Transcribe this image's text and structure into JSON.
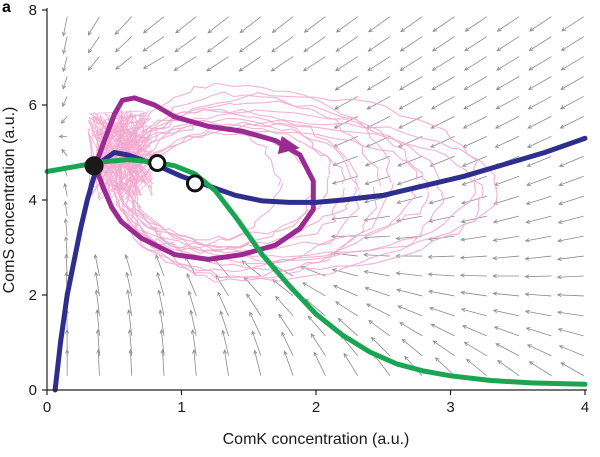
{
  "panel_label": "a",
  "colors": {
    "vector_field": "#8a8a8a",
    "stochastic_traces": "#f2a9cf",
    "deterministic_trajectory": "#9b2b93",
    "comk_nullcline": "#2e2e8f",
    "coms_nullcline": "#1aa552",
    "stable_point": "#1a1a1a",
    "unstable_point": "#ffffff"
  },
  "chart_data": {
    "type": "line",
    "title": "",
    "xlabel": "ComK concentration (a.u.)",
    "ylabel": "ComS concentration (a.u.)",
    "xlim": [
      0,
      4
    ],
    "ylim": [
      0,
      8
    ],
    "x_ticks": [
      0,
      1,
      2,
      3,
      4
    ],
    "y_ticks": [
      0,
      2,
      4,
      6,
      8
    ],
    "x_tick_labels": [
      "0",
      "1",
      "2",
      "3",
      "4"
    ],
    "y_tick_labels": [
      "0",
      "2",
      "4",
      "6",
      "8"
    ],
    "grid": false,
    "legend": "none",
    "series": [
      {
        "kind": "nullcline",
        "color": "#2e2e8f",
        "points": [
          [
            0.06,
            0.0
          ],
          [
            0.1,
            1.0
          ],
          [
            0.15,
            2.0
          ],
          [
            0.2,
            2.7
          ],
          [
            0.25,
            3.4
          ],
          [
            0.3,
            4.0
          ],
          [
            0.35,
            4.5
          ],
          [
            0.4,
            4.8
          ],
          [
            0.5,
            5.0
          ],
          [
            0.6,
            4.95
          ],
          [
            0.8,
            4.75
          ],
          [
            1.0,
            4.5
          ],
          [
            1.2,
            4.3
          ],
          [
            1.4,
            4.1
          ],
          [
            1.6,
            3.98
          ],
          [
            1.8,
            3.95
          ],
          [
            2.0,
            3.95
          ],
          [
            2.2,
            4.0
          ],
          [
            2.5,
            4.1
          ],
          [
            2.8,
            4.3
          ],
          [
            3.1,
            4.5
          ],
          [
            3.4,
            4.75
          ],
          [
            3.7,
            5.0
          ],
          [
            4.0,
            5.3
          ]
        ]
      },
      {
        "kind": "nullcline",
        "color": "#1aa552",
        "points": [
          [
            0.0,
            4.6
          ],
          [
            0.2,
            4.7
          ],
          [
            0.4,
            4.8
          ],
          [
            0.6,
            4.85
          ],
          [
            0.8,
            4.8
          ],
          [
            0.95,
            4.72
          ],
          [
            1.1,
            4.55
          ],
          [
            1.25,
            4.2
          ],
          [
            1.4,
            3.65
          ],
          [
            1.6,
            2.85
          ],
          [
            1.8,
            2.2
          ],
          [
            2.0,
            1.6
          ],
          [
            2.2,
            1.15
          ],
          [
            2.4,
            0.8
          ],
          [
            2.6,
            0.55
          ],
          [
            2.8,
            0.4
          ],
          [
            3.0,
            0.3
          ],
          [
            3.3,
            0.2
          ],
          [
            3.6,
            0.15
          ],
          [
            4.0,
            0.12
          ]
        ]
      },
      {
        "kind": "deterministic-excursion",
        "color": "#9b2b93",
        "points": [
          [
            0.36,
            4.72
          ],
          [
            0.42,
            5.2
          ],
          [
            0.5,
            5.8
          ],
          [
            0.56,
            6.1
          ],
          [
            0.65,
            6.15
          ],
          [
            0.8,
            6.0
          ],
          [
            0.95,
            5.75
          ],
          [
            1.2,
            5.55
          ],
          [
            1.45,
            5.45
          ],
          [
            1.7,
            5.25
          ],
          [
            1.88,
            4.95
          ],
          [
            1.98,
            4.4
          ],
          [
            1.98,
            3.8
          ],
          [
            1.88,
            3.4
          ],
          [
            1.7,
            3.05
          ],
          [
            1.45,
            2.85
          ],
          [
            1.2,
            2.75
          ],
          [
            0.95,
            2.85
          ],
          [
            0.7,
            3.2
          ],
          [
            0.55,
            3.55
          ],
          [
            0.48,
            3.85
          ],
          [
            0.42,
            4.25
          ],
          [
            0.38,
            4.55
          ],
          [
            0.36,
            4.72
          ]
        ]
      }
    ],
    "fixed_points": [
      {
        "x": 0.35,
        "y": 4.72,
        "stability": "stable"
      },
      {
        "x": 0.82,
        "y": 4.78,
        "stability": "unstable"
      },
      {
        "x": 1.1,
        "y": 4.35,
        "stability": "unstable"
      }
    ]
  }
}
